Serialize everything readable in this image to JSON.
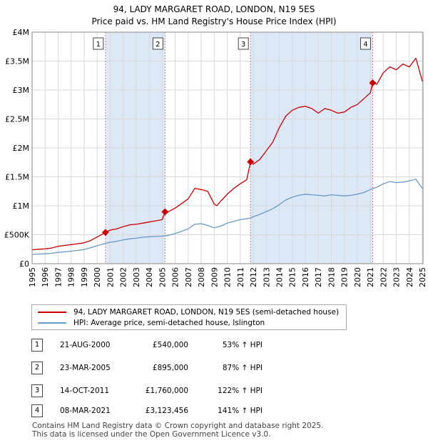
{
  "title_line1": "94, LADY MARGARET ROAD, LONDON, N19 5ES",
  "title_line2": "Price paid vs. HM Land Registry's House Price Index (HPI)",
  "legend": {
    "property_label": "94, LADY MARGARET ROAD, LONDON, N19 5ES (semi-detached house)",
    "hpi_label": "HPI: Average price, semi-detached house, Islington"
  },
  "colors": {
    "property": "#cc0000",
    "hpi": "#6699cc",
    "shade": "#dde8f6",
    "vline": "#e07a7a"
  },
  "transactions": [
    {
      "num": "1",
      "date": "21-AUG-2000",
      "price": "£540,000",
      "hpi": "53% ↑ HPI"
    },
    {
      "num": "2",
      "date": "23-MAR-2005",
      "price": "£895,000",
      "hpi": "87% ↑ HPI"
    },
    {
      "num": "3",
      "date": "14-OCT-2011",
      "price": "£1,760,000",
      "hpi": "122% ↑ HPI"
    },
    {
      "num": "4",
      "date": "08-MAR-2021",
      "price": "£3,123,456",
      "hpi": "141% ↑ HPI"
    }
  ],
  "footer_line1": "Contains HM Land Registry data © Crown copyright and database right 2025.",
  "footer_line2": "This data is licensed under the Open Government Licence v3.0.",
  "chart_data": {
    "type": "line",
    "title": "94, LADY MARGARET ROAD, LONDON, N19 5ES",
    "subtitle": "Price paid vs. HM Land Registry's House Price Index (HPI)",
    "xlim": [
      1995.0,
      2025.05
    ],
    "ylim": [
      0,
      4000000
    ],
    "x_ticks": [
      "1995",
      "1996",
      "1997",
      "1998",
      "1999",
      "2000",
      "2001",
      "2002",
      "2003",
      "2004",
      "2005",
      "2006",
      "2007",
      "2008",
      "2009",
      "2010",
      "2011",
      "2012",
      "2013",
      "2014",
      "2015",
      "2016",
      "2017",
      "2018",
      "2019",
      "2020",
      "2021",
      "2022",
      "2023",
      "2024",
      "2025"
    ],
    "y_ticks": [
      {
        "value": 0,
        "label": "£0"
      },
      {
        "value": 500000,
        "label": "£500K"
      },
      {
        "value": 1000000,
        "label": "£1M"
      },
      {
        "value": 1500000,
        "label": "£1.5M"
      },
      {
        "value": 2000000,
        "label": "£2M"
      },
      {
        "value": 2500000,
        "label": "£2.5M"
      },
      {
        "value": 3000000,
        "label": "£3M"
      },
      {
        "value": 3500000,
        "label": "£3.5M"
      },
      {
        "value": 4000000,
        "label": "£4M"
      }
    ],
    "grid": true,
    "shaded_ranges": [
      [
        2000.64,
        2005.22
      ],
      [
        2011.79,
        2021.18
      ]
    ],
    "sales": [
      {
        "label": "1",
        "x": 2000.64,
        "y": 540000
      },
      {
        "label": "2",
        "x": 2005.22,
        "y": 895000
      },
      {
        "label": "3",
        "x": 2011.79,
        "y": 1760000
      },
      {
        "label": "4",
        "x": 2021.18,
        "y": 3123456
      }
    ],
    "series": [
      {
        "name": "94, LADY MARGARET ROAD, LONDON, N19 5ES (semi-detached house)",
        "x": [
          1995.0,
          1995.5,
          1996.0,
          1996.5,
          1997.0,
          1997.5,
          1998.0,
          1998.5,
          1999.0,
          1999.5,
          2000.0,
          2000.64,
          2001.0,
          2001.5,
          2002.0,
          2002.5,
          2003.0,
          2003.5,
          2004.0,
          2004.5,
          2005.0,
          2005.22,
          2005.5,
          2006.0,
          2006.5,
          2007.0,
          2007.5,
          2008.0,
          2008.5,
          2009.0,
          2009.2,
          2009.5,
          2010.0,
          2010.5,
          2011.0,
          2011.5,
          2011.79,
          2012.0,
          2012.5,
          2013.0,
          2013.5,
          2014.0,
          2014.5,
          2015.0,
          2015.5,
          2016.0,
          2016.5,
          2017.0,
          2017.5,
          2018.0,
          2018.5,
          2019.0,
          2019.5,
          2020.0,
          2020.5,
          2021.0,
          2021.18,
          2021.5,
          2022.0,
          2022.5,
          2023.0,
          2023.5,
          2024.0,
          2024.5,
          2025.0
        ],
        "y": [
          240000,
          250000,
          255000,
          270000,
          300000,
          315000,
          330000,
          345000,
          360000,
          400000,
          460000,
          540000,
          580000,
          600000,
          640000,
          670000,
          680000,
          700000,
          720000,
          740000,
          760000,
          895000,
          900000,
          960000,
          1040000,
          1120000,
          1300000,
          1280000,
          1250000,
          1030000,
          1000000,
          1080000,
          1200000,
          1300000,
          1380000,
          1450000,
          1760000,
          1720000,
          1800000,
          1950000,
          2100000,
          2350000,
          2550000,
          2650000,
          2700000,
          2720000,
          2680000,
          2600000,
          2680000,
          2650000,
          2600000,
          2620000,
          2700000,
          2750000,
          2850000,
          2950000,
          3123456,
          3100000,
          3300000,
          3400000,
          3350000,
          3450000,
          3400000,
          3550000,
          3150000
        ]
      },
      {
        "name": "HPI: Average price, semi-detached house, Islington",
        "x": [
          1995.0,
          1995.5,
          1996.0,
          1996.5,
          1997.0,
          1997.5,
          1998.0,
          1998.5,
          1999.0,
          1999.5,
          2000.0,
          2000.64,
          2001.0,
          2001.5,
          2002.0,
          2002.5,
          2003.0,
          2003.5,
          2004.0,
          2004.5,
          2005.0,
          2005.22,
          2005.5,
          2006.0,
          2006.5,
          2007.0,
          2007.5,
          2008.0,
          2008.5,
          2009.0,
          2009.5,
          2010.0,
          2010.5,
          2011.0,
          2011.5,
          2011.79,
          2012.0,
          2012.5,
          2013.0,
          2013.5,
          2014.0,
          2014.5,
          2015.0,
          2015.5,
          2016.0,
          2016.5,
          2017.0,
          2017.5,
          2018.0,
          2018.5,
          2019.0,
          2019.5,
          2020.0,
          2020.5,
          2021.0,
          2021.18,
          2021.5,
          2022.0,
          2022.5,
          2023.0,
          2023.5,
          2024.0,
          2024.5,
          2025.0
        ],
        "y": [
          160000,
          165000,
          170000,
          180000,
          195000,
          205000,
          215000,
          230000,
          245000,
          275000,
          310000,
          350000,
          370000,
          385000,
          410000,
          430000,
          440000,
          455000,
          465000,
          470000,
          475000,
          480000,
          490000,
          520000,
          560000,
          600000,
          680000,
          690000,
          660000,
          620000,
          650000,
          700000,
          730000,
          760000,
          775000,
          790000,
          810000,
          850000,
          900000,
          950000,
          1020000,
          1100000,
          1150000,
          1180000,
          1200000,
          1190000,
          1180000,
          1170000,
          1190000,
          1180000,
          1170000,
          1180000,
          1200000,
          1230000,
          1280000,
          1300000,
          1320000,
          1380000,
          1420000,
          1400000,
          1410000,
          1430000,
          1460000,
          1300000
        ]
      }
    ]
  }
}
